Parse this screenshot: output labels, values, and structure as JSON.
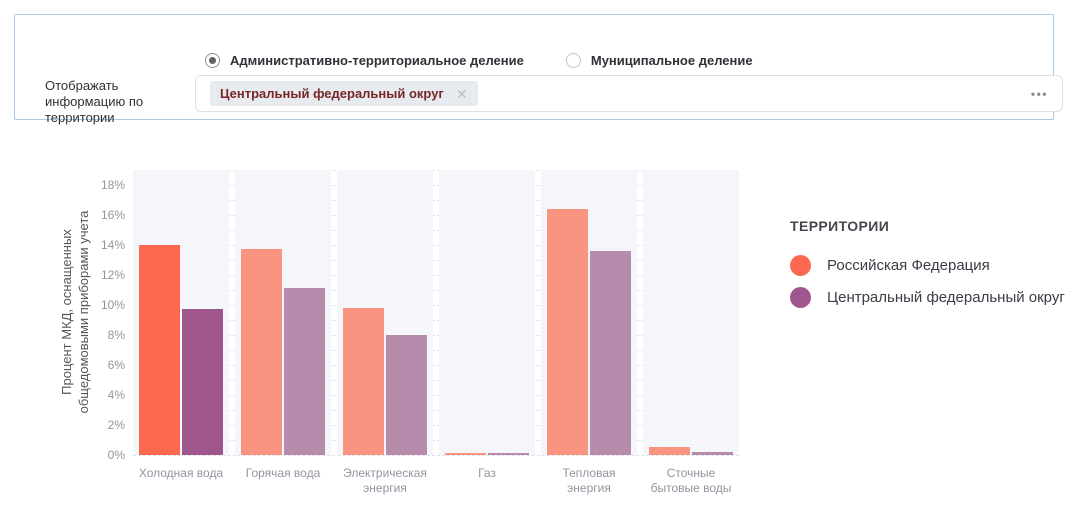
{
  "filter_panel": {
    "division_options": [
      {
        "label": "Административно-территориальное деление",
        "selected": true
      },
      {
        "label": "Муниципальное деление",
        "selected": false
      }
    ],
    "territory_label": "Отображать информацию по территории",
    "territory_chip": {
      "text": "Центральный федеральный округ",
      "close_icon": "✕"
    },
    "more_options_icon": "•••"
  },
  "chart_data": {
    "type": "bar",
    "title": "",
    "ylabel": "Процент МКД, оснащенных\nобщедомовыми приборами учета",
    "categories": [
      "Холодная вода",
      "Горячая вода",
      "Электрическая энергия",
      "Газ",
      "Тепловая энергия",
      "Сточные бытовые воды"
    ],
    "category_labels": [
      "Холодная вода",
      "Горячая вода",
      "Электрическая\nэнергия",
      "Газ",
      "Тепловая\nэнергия",
      "Сточные\nбытовые воды"
    ],
    "series": [
      {
        "name": "Российская Федерация",
        "color": "#fb6a50",
        "muted_color": "#f99481",
        "values": [
          14.0,
          13.7,
          9.8,
          0.1,
          16.4,
          0.5
        ]
      },
      {
        "name": "Центральный федеральный округ",
        "color": "#9f568c",
        "muted_color": "#b78bac",
        "values": [
          9.7,
          11.1,
          8.0,
          0.1,
          13.6,
          0.2
        ]
      }
    ],
    "highlighted_category_index": 0,
    "ylim": [
      0,
      19
    ],
    "ytick_step": 2,
    "ytick_max": 18,
    "grid_step": 1,
    "grid": true,
    "legend_title": "ТЕРРИТОРИИ",
    "legend_position": "right",
    "value_suffix": "%"
  }
}
